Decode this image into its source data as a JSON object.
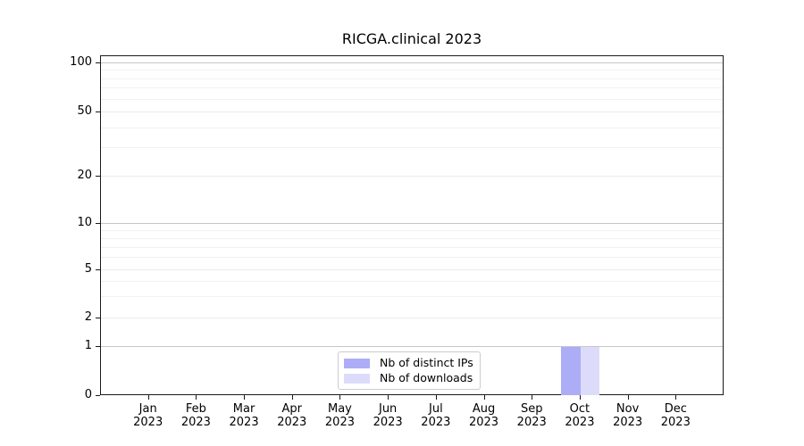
{
  "title": "RICGA.clinical 2023",
  "colors": {
    "distinct_ips_bar": "#acacf7",
    "downloads_bar": "#dcdcfa",
    "grid_major": "#c6c6c6",
    "grid_mid": "#ebebeb",
    "grid_minor": "#f1f1f1",
    "spine": "#1a1a1a"
  },
  "legend": {
    "entries": [
      {
        "label": "Nb of distinct IPs",
        "color": "#acacf7"
      },
      {
        "label": "Nb of downloads",
        "color": "#dcdcfa"
      }
    ]
  },
  "chart_data": {
    "type": "bar",
    "title": "RICGA.clinical 2023",
    "categories": [
      "Jan 2023",
      "Feb 2023",
      "Mar 2023",
      "Apr 2023",
      "May 2023",
      "Jun 2023",
      "Jul 2023",
      "Aug 2023",
      "Sep 2023",
      "Oct 2023",
      "Nov 2023",
      "Dec 2023"
    ],
    "x_tick_months": [
      "Jan",
      "Feb",
      "Mar",
      "Apr",
      "May",
      "Jun",
      "Jul",
      "Aug",
      "Sep",
      "Oct",
      "Nov",
      "Dec"
    ],
    "x_tick_year": "2023",
    "series": [
      {
        "name": "Nb of distinct IPs",
        "color": "#acacf7",
        "values": [
          0,
          0,
          0,
          0,
          0,
          0,
          0,
          0,
          0,
          1,
          0,
          0
        ]
      },
      {
        "name": "Nb of downloads",
        "color": "#dcdcfa",
        "values": [
          0,
          0,
          0,
          0,
          0,
          0,
          0,
          0,
          0,
          1,
          0,
          0
        ]
      }
    ],
    "yscale": "log-like with 0 baseline",
    "y_ticks": [
      0,
      1,
      2,
      5,
      10,
      20,
      50,
      100
    ],
    "y_tick_labels": [
      "0",
      "1",
      "2",
      "5",
      "10",
      "20",
      "50",
      "100"
    ],
    "y_minor_gridlines": [
      3,
      4,
      6,
      7,
      8,
      9,
      30,
      40,
      60,
      70,
      80,
      90
    ],
    "y_major_gridlines": [
      1,
      10,
      100
    ],
    "ylim": [
      0,
      115
    ],
    "grid": "horizontal only",
    "legend_position": "inside, lower center"
  }
}
